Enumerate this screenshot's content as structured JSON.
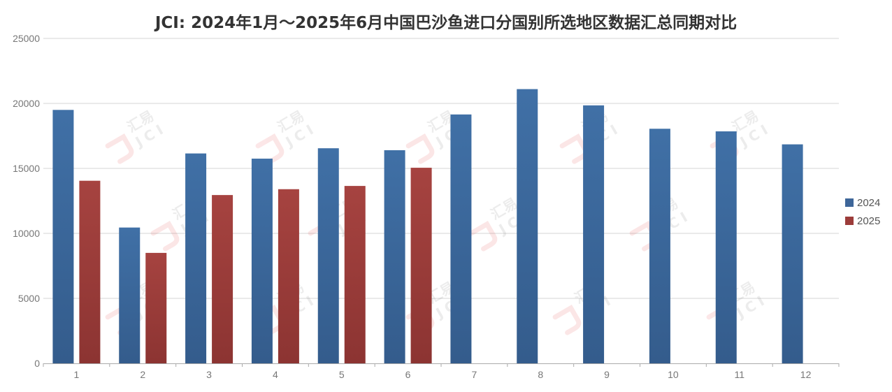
{
  "chart_data": {
    "type": "bar",
    "title": "JCI: 2024年1月～2025年6月中国巴沙鱼进口分国别所选地区数据汇总同期对比",
    "xlabel": "",
    "ylabel": "",
    "categories": [
      "1",
      "2",
      "3",
      "4",
      "5",
      "6",
      "7",
      "8",
      "9",
      "10",
      "11",
      "12"
    ],
    "ylim": [
      0,
      25000
    ],
    "yticks": [
      0,
      5000,
      10000,
      15000,
      20000,
      25000
    ],
    "grid": true,
    "legend_position": "right",
    "series": [
      {
        "name": "2024",
        "color": "#3e6699",
        "values": [
          19500,
          10450,
          16150,
          15750,
          16550,
          16400,
          19150,
          21100,
          19850,
          18050,
          17850,
          16850
        ]
      },
      {
        "name": "2025",
        "color": "#9c3c3a",
        "values": [
          14050,
          8500,
          12950,
          13400,
          13650,
          15050,
          null,
          null,
          null,
          null,
          null,
          null
        ]
      }
    ],
    "watermark": {
      "text": "汇易",
      "sub": "JCI",
      "color": "#e8474a"
    }
  }
}
